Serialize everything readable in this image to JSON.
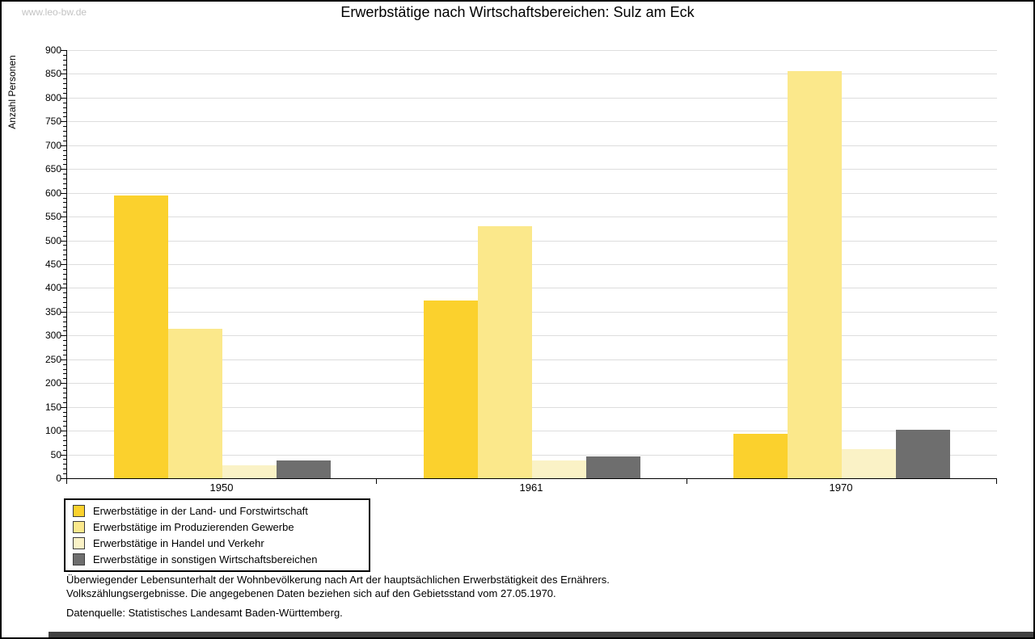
{
  "page": {
    "watermark": "www.leo-bw.de"
  },
  "chart_data": {
    "type": "bar",
    "title": "Erwerbstätige nach Wirtschaftsbereichen: Sulz am Eck",
    "ylabel": "Anzahl Personen",
    "xlabel": "",
    "ylim": [
      0,
      900
    ],
    "ytick_step": 50,
    "minor_tick_step": 10,
    "grid": true,
    "legend_position": "bottom-left",
    "categories": [
      "1950",
      "1961",
      "1970"
    ],
    "series": [
      {
        "name": "Erwerbstätige in der Land- und Forstwirtschaft",
        "color": "#FBD12D",
        "values": [
          595,
          374,
          94
        ]
      },
      {
        "name": "Erwerbstätige im Produzierenden Gewerbe",
        "color": "#FBE88B",
        "values": [
          314,
          529,
          856
        ]
      },
      {
        "name": "Erwerbstätige in Handel und Verkehr",
        "color": "#FAF2C6",
        "values": [
          27,
          38,
          61
        ]
      },
      {
        "name": "Erwerbstätige in sonstigen Wirtschaftsbereichen",
        "color": "#6E6E6E",
        "values": [
          37,
          46,
          102
        ]
      }
    ]
  },
  "footnotes": {
    "line1": "Überwiegender Lebensunterhalt der Wohnbevölkerung nach Art der hauptsächlichen Erwerbstätigkeit des Ernährers.",
    "line2": "Volkszählungsergebnisse. Die angegebenen Daten beziehen sich auf den Gebietsstand vom 27.05.1970.",
    "source": "Datenquelle: Statistisches Landesamt Baden-Württemberg."
  },
  "colors": {
    "axis": "#000000",
    "grid": "#DDDDDD",
    "watermark": "#C3C3C3",
    "background": "#FFFFFF"
  }
}
